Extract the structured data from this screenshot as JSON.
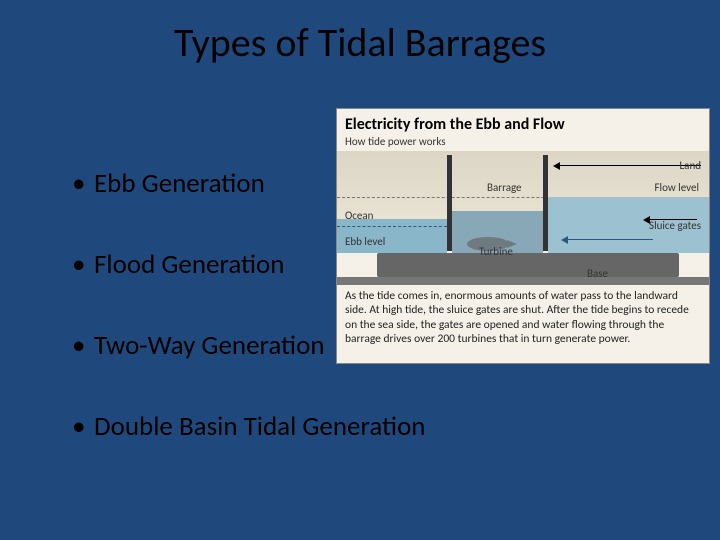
{
  "title": "Types of Tidal Barrages",
  "bullets": {
    "b1": "Ebb Generation",
    "b2": "Flood Generation",
    "b3": "Two-Way Generation",
    "b4": "Double Basin Tidal Generation"
  },
  "diagram": {
    "title": "Electricity from the Ebb and Flow",
    "subtitle": "How tide power works",
    "labels": {
      "ocean": "Ocean",
      "land": "Land",
      "flow_level": "Flow level",
      "ebb_level": "Ebb level",
      "barrage": "Barrage",
      "turbine": "Turbine",
      "base": "Base",
      "sluice": "Sluice gates"
    },
    "caption": "As the tide comes in, enormous amounts of water pass to the landward side. At high tide, the sluice gates are shut. After the tide begins to recede on the sea side, the gates are opened and water flowing through the barrage drives over 200 turbines that in turn generate power.",
    "colors": {
      "slide_bg": "#1f497d",
      "panel_bg": "#f5f1e8",
      "sea_water": "#8ab6c9",
      "land_water": "#9cc2d1",
      "inner_water": "#88a8b8",
      "base": "#666666",
      "barrage": "#333333",
      "turbine": "#6e7a80",
      "ebb_text": "#2a5a7a"
    }
  }
}
